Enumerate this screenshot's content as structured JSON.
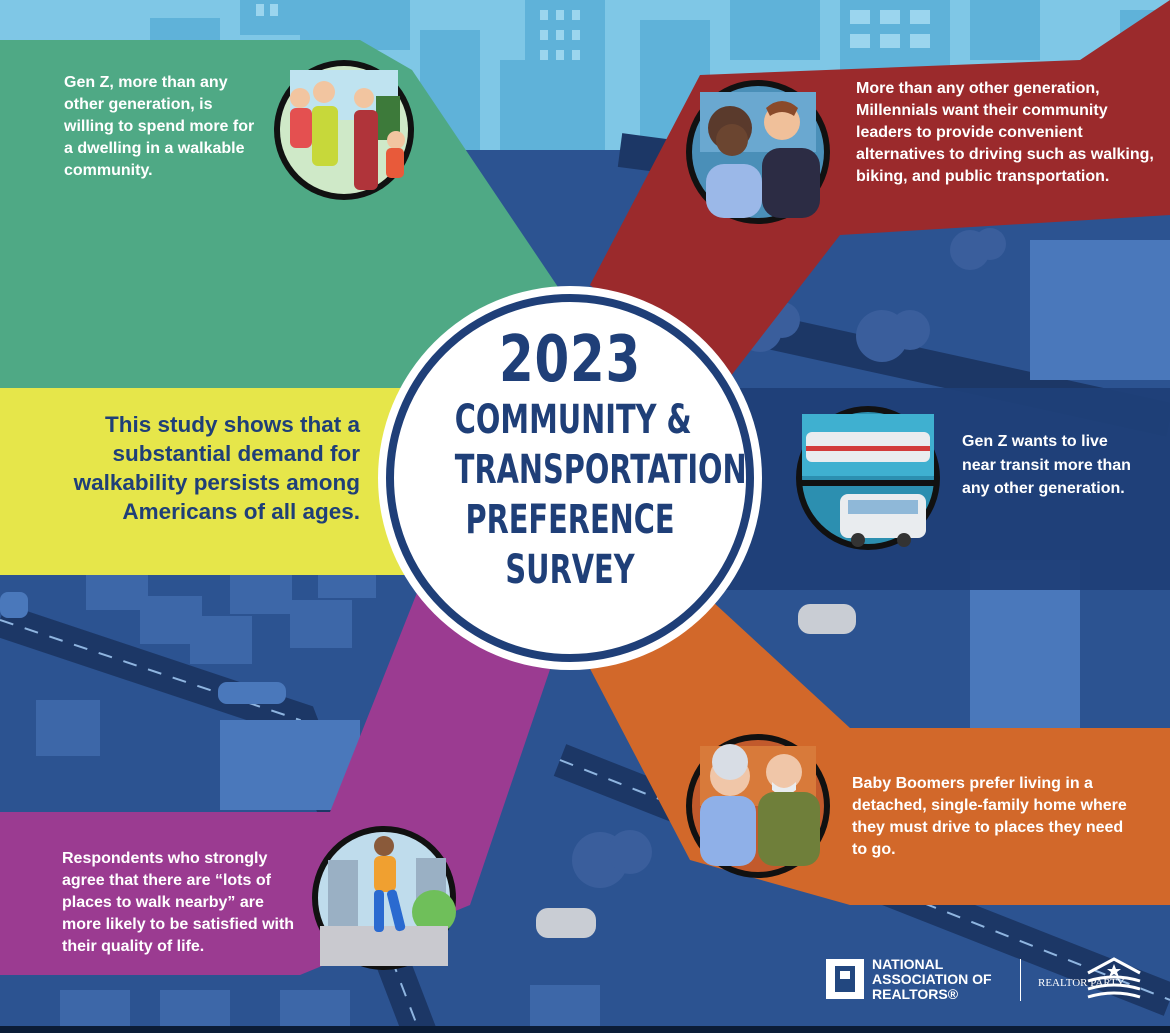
{
  "title": {
    "year": "2023",
    "line1": "COMMUNITY &",
    "line2": "TRANSPORTATION",
    "line3": "PREFERENCE",
    "line4": "SURVEY"
  },
  "panels": {
    "genz_dwelling": "Gen Z, more than any other generation, is willing to spend more for a dwelling in a walkable community.",
    "millennials": "More than any other generation, Millennials want their community leaders to provide convenient alternatives to driving such as walking, biking, and public transportation.",
    "study": "This study shows that a substantial demand for walkability persists among Americans of all ages.",
    "genz_transit": "Gen Z wants to live near transit more than any other generation.",
    "boomers": "Baby Boomers prefer living in a detached, single-family home where they must drive to places they need to go.",
    "respondents": "Respondents who strongly agree that there are “lots of places to walk nearby” are more likely to be satisfied with their quality of life."
  },
  "logos": {
    "nar_line1": "NATIONAL",
    "nar_line2": "ASSOCIATION OF",
    "nar_line3": "REALTORS®",
    "realtor_party": "REALTOR PARTY"
  },
  "colors": {
    "green": "#4fa985",
    "red": "#9b2a2c",
    "yellow": "#e6e64a",
    "navy": "#1f3f78",
    "orange": "#d2682a",
    "purple": "#9b3b91",
    "sky": "#5fb2d9"
  }
}
